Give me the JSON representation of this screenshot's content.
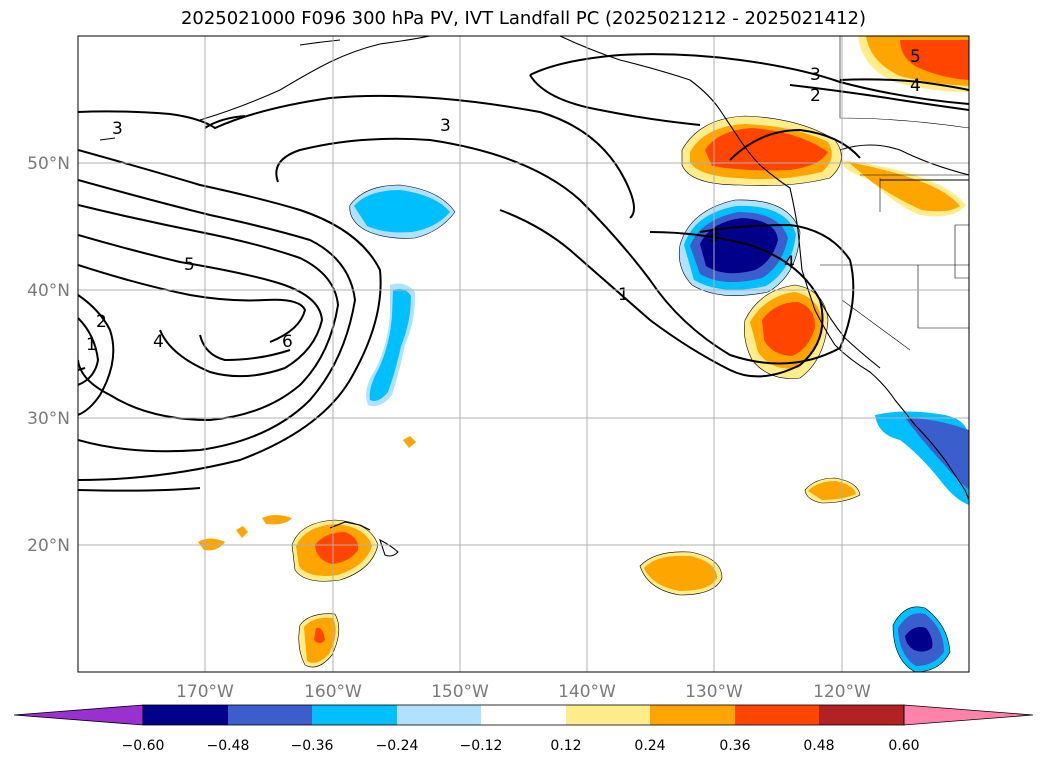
{
  "title": "2025021000 F096 300 hPa PV, IVT Landfall PC (2025021212 - 2025021412)",
  "lat_labels": [
    "50°N",
    "40°N",
    "30°N",
    "20°N"
  ],
  "lon_labels": [
    "170°W",
    "160°W",
    "150°W",
    "140°W",
    "130°W",
    "120°W"
  ],
  "colorbar": {
    "levels": [
      "−0.60",
      "−0.48",
      "−0.36",
      "−0.24",
      "−0.12",
      "0.12",
      "0.24",
      "0.36",
      "0.48",
      "0.60"
    ],
    "colors": [
      "#9b30d0",
      "#00008b",
      "#3a5fcd",
      "#00bfff",
      "#b0e2ff",
      "#ffffff",
      "#ffec8b",
      "#ffa500",
      "#ff4500",
      "#b22222",
      "#ff82ab"
    ]
  },
  "contour_labels": [
    "3",
    "3",
    "3",
    "2",
    "5",
    "4",
    "2",
    "1",
    "5",
    "4",
    "6",
    "1",
    "3",
    "4"
  ],
  "colors": {
    "neg_dark": "#00008b",
    "neg_mid": "#3a5fcd",
    "neg_light": "#00bfff",
    "neg_pale": "#b0e2ff",
    "pos_pale": "#ffec8b",
    "pos_light": "#ffa500",
    "pos_mid": "#ff4500"
  }
}
